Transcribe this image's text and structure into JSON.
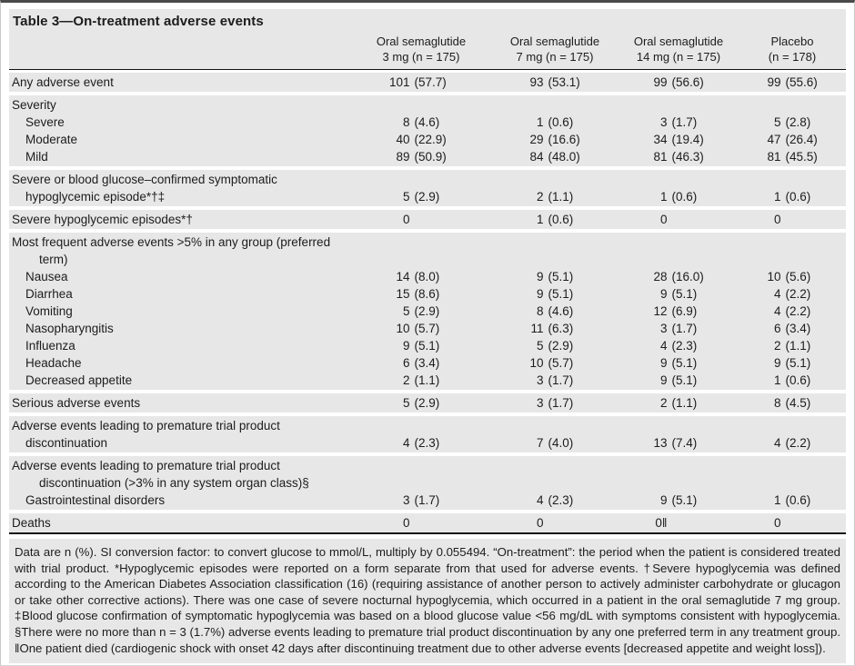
{
  "table": {
    "title": "Table 3—On-treatment adverse events",
    "columns": [
      {
        "line1": "Oral semaglutide",
        "line2": "3 mg (n = 175)"
      },
      {
        "line1": "Oral semaglutide",
        "line2": "7 mg (n = 175)"
      },
      {
        "line1": "Oral semaglutide",
        "line2": "14 mg (n = 175)"
      },
      {
        "line1": "Placebo",
        "line2": "(n = 178)"
      }
    ],
    "groups": [
      {
        "rows": [
          {
            "label": "Any adverse event",
            "indent": 0,
            "values": [
              "101 (57.7)",
              "93 (53.1)",
              "99 (56.6)",
              "99 (55.6)"
            ]
          }
        ]
      },
      {
        "rows": [
          {
            "label": "Severity",
            "indent": 0,
            "values": [
              "",
              "",
              "",
              ""
            ]
          },
          {
            "label": "Severe",
            "indent": 1,
            "values": [
              "8 (4.6)",
              "1 (0.6)",
              "3 (1.7)",
              "5 (2.8)"
            ]
          },
          {
            "label": "Moderate",
            "indent": 1,
            "values": [
              "40 (22.9)",
              "29 (16.6)",
              "34 (19.4)",
              "47 (26.4)"
            ]
          },
          {
            "label": "Mild",
            "indent": 1,
            "values": [
              "89 (50.9)",
              "84 (48.0)",
              "81 (46.3)",
              "81 (45.5)"
            ]
          }
        ]
      },
      {
        "rows": [
          {
            "label": "Severe or blood glucose–confirmed symptomatic",
            "indent": 0,
            "values": [
              "",
              "",
              "",
              ""
            ]
          },
          {
            "label": "hypoglycemic episode*†‡",
            "indent": 1,
            "values": [
              "5 (2.9)",
              "2 (1.1)",
              "1 (0.6)",
              "1 (0.6)"
            ]
          }
        ]
      },
      {
        "rows": [
          {
            "label": "Severe hypoglycemic episodes*†",
            "indent": 0,
            "values": [
              "0",
              "1 (0.6)",
              "0",
              "0"
            ]
          }
        ]
      },
      {
        "rows": [
          {
            "label": "Most frequent adverse events >5% in any group (preferred",
            "indent": 0,
            "values": [
              "",
              "",
              "",
              ""
            ]
          },
          {
            "label": "term)",
            "indent": 2,
            "values": [
              "",
              "",
              "",
              ""
            ]
          },
          {
            "label": "Nausea",
            "indent": 1,
            "values": [
              "14 (8.0)",
              "9 (5.1)",
              "28 (16.0)",
              "10 (5.6)"
            ]
          },
          {
            "label": "Diarrhea",
            "indent": 1,
            "values": [
              "15 (8.6)",
              "9 (5.1)",
              "9 (5.1)",
              "4 (2.2)"
            ]
          },
          {
            "label": "Vomiting",
            "indent": 1,
            "values": [
              "5 (2.9)",
              "8 (4.6)",
              "12 (6.9)",
              "4 (2.2)"
            ]
          },
          {
            "label": "Nasopharyngitis",
            "indent": 1,
            "values": [
              "10 (5.7)",
              "11 (6.3)",
              "3 (1.7)",
              "6 (3.4)"
            ]
          },
          {
            "label": "Influenza",
            "indent": 1,
            "values": [
              "9 (5.1)",
              "5 (2.9)",
              "4 (2.3)",
              "2 (1.1)"
            ]
          },
          {
            "label": "Headache",
            "indent": 1,
            "values": [
              "6 (3.4)",
              "10 (5.7)",
              "9 (5.1)",
              "9 (5.1)"
            ]
          },
          {
            "label": "Decreased appetite",
            "indent": 1,
            "values": [
              "2 (1.1)",
              "3 (1.7)",
              "9 (5.1)",
              "1 (0.6)"
            ]
          }
        ]
      },
      {
        "rows": [
          {
            "label": "Serious adverse events",
            "indent": 0,
            "values": [
              "5 (2.9)",
              "3 (1.7)",
              "2 (1.1)",
              "8 (4.5)"
            ]
          }
        ]
      },
      {
        "rows": [
          {
            "label": "Adverse events leading to premature trial product",
            "indent": 0,
            "values": [
              "",
              "",
              "",
              ""
            ]
          },
          {
            "label": "discontinuation",
            "indent": 1,
            "values": [
              "4 (2.3)",
              "7 (4.0)",
              "13 (7.4)",
              "4 (2.2)"
            ]
          }
        ]
      },
      {
        "rows": [
          {
            "label": "Adverse events leading to premature trial product",
            "indent": 0,
            "values": [
              "",
              "",
              "",
              ""
            ]
          },
          {
            "label": "discontinuation (>3% in any system organ class)§",
            "indent": 2,
            "values": [
              "",
              "",
              "",
              ""
            ]
          },
          {
            "label": "Gastrointestinal disorders",
            "indent": 1,
            "values": [
              "3 (1.7)",
              "4 (2.3)",
              "9 (5.1)",
              "1 (0.6)"
            ]
          }
        ]
      },
      {
        "rows": [
          {
            "label": "Deaths",
            "indent": 0,
            "values": [
              "0",
              "0",
              "0‖",
              "0"
            ]
          }
        ]
      }
    ],
    "footnote": "Data are n (%). SI conversion factor: to convert glucose to mmol/L, multiply by 0.055494. “On-treatment”: the period when the patient is considered treated with trial product. *Hypoglycemic episodes were reported on a form separate from that used for adverse events. †Severe hypoglycemia was defined according to the American Diabetes Association classification (16) (requiring assistance of another person to actively administer carbohydrate or glucagon or take other corrective actions). There was one case of severe nocturnal hypoglycemia, which occurred in a patient in the oral semaglutide 7 mg group. ‡Blood glucose confirmation of symptomatic hypoglycemia was based on a blood glucose value <56 mg/dL with symptoms consistent with hypoglycemia. §There were no more than n = 3 (1.7%) adverse events leading to premature trial product discontinuation by any one preferred term in any treatment group. ‖One patient died (cardiogenic shock with onset 42 days after discontinuing treatment due to other adverse events [decreased appetite and weight loss]).",
    "colors": {
      "band_gray": "#e7e7e7",
      "rule_black": "#111111",
      "text": "#1c1c1c"
    }
  }
}
